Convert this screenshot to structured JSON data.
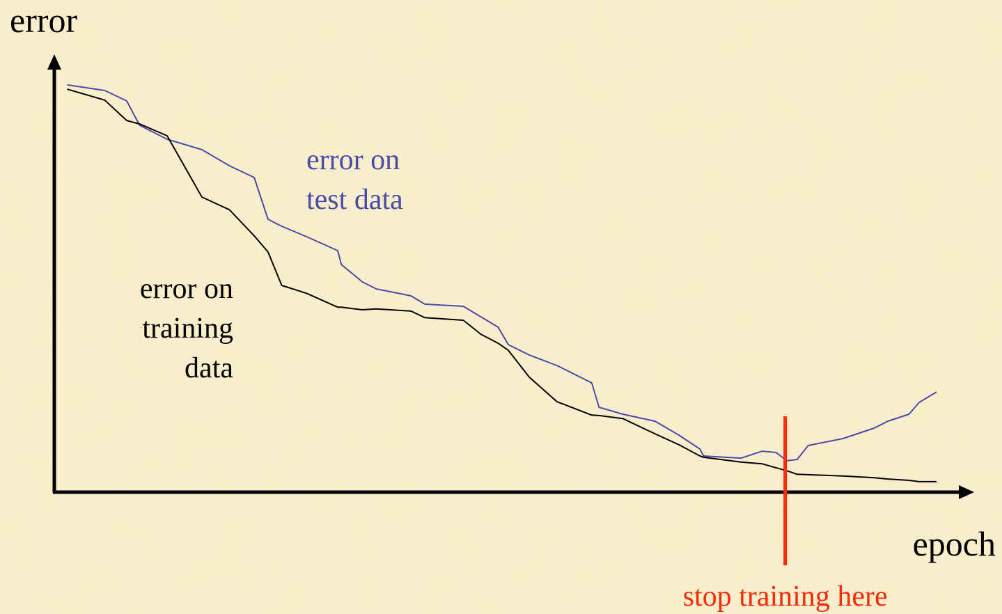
{
  "chart_data": {
    "type": "line",
    "y_label": "error",
    "x_label": "epoch",
    "xlim": [
      0,
      100
    ],
    "ylim": [
      0,
      100
    ],
    "x": [
      1.4,
      5.5,
      7.9,
      9.3,
      12.3,
      16.1,
      19.1,
      21.8,
      23.3,
      24.8,
      27.5,
      30.9,
      31.3,
      33.6,
      35.1,
      38.9,
      40.4,
      44.6,
      46.5,
      48.4,
      49.5,
      51.8,
      54.8,
      58.6,
      59.4,
      62.0,
      65.5,
      68.1,
      70.4,
      70.8,
      74.9,
      77.2,
      78.7,
      79.9,
      81.0,
      82.2,
      86.0,
      89.4,
      90.9,
      93.2,
      94.3,
      96.2
    ],
    "series": [
      {
        "label": [
          "error on",
          "test data"
        ],
        "color": "#4a4aa8",
        "values": [
          93.3,
          92.0,
          89.6,
          84.0,
          80.8,
          78.4,
          74.7,
          72.0,
          62.4,
          60.8,
          58.4,
          55.2,
          52.0,
          48.0,
          46.4,
          44.8,
          42.9,
          42.4,
          40.0,
          37.6,
          33.6,
          31.2,
          28.8,
          24.8,
          19.2,
          17.6,
          16.0,
          12.8,
          9.6,
          8.0,
          7.5,
          9.1,
          8.8,
          6.9,
          7.2,
          10.4,
          12.0,
          14.4,
          16.0,
          17.6,
          20.3,
          22.7
        ]
      },
      {
        "label": [
          "error on",
          "training",
          "data"
        ],
        "color": "#000000",
        "values": [
          92.3,
          89.8,
          85.1,
          84.3,
          81.6,
          67.5,
          64.6,
          58.6,
          54.9,
          47.2,
          45.4,
          42.2,
          42.2,
          41.6,
          41.8,
          41.3,
          39.8,
          39.2,
          36.0,
          33.9,
          32.3,
          26.1,
          20.5,
          17.4,
          17.3,
          16.6,
          13.1,
          10.6,
          8.0,
          7.7,
          6.6,
          6.2,
          5.3,
          4.6,
          3.8,
          3.7,
          3.4,
          3.0,
          2.7,
          2.4,
          2.1,
          2.1
        ]
      }
    ],
    "annotation": {
      "text": "stop training here",
      "x": 79.7,
      "color": "#ff2a0a"
    }
  }
}
